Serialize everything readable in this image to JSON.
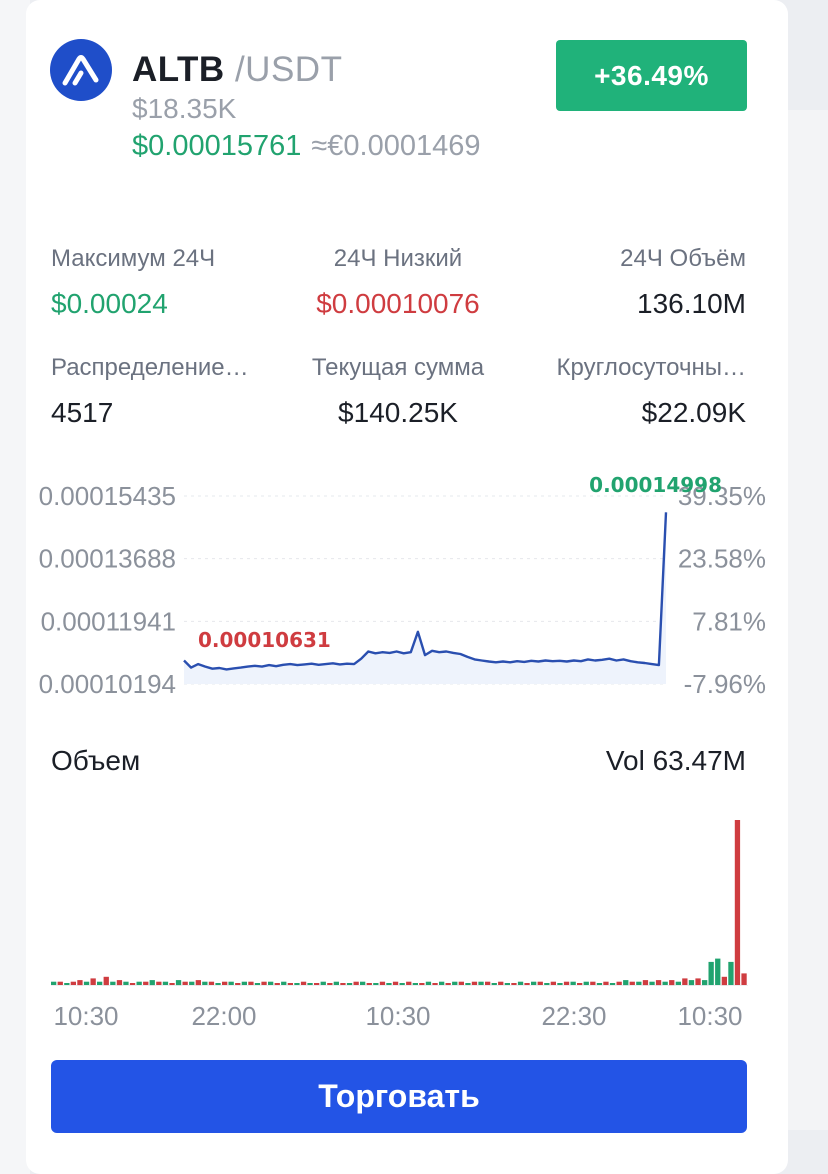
{
  "header": {
    "icon": "altb-logo-icon",
    "base": "ALTB",
    "quote": " /USDT",
    "market_cap": "$18.35K",
    "price": "$0.00015761",
    "fiat_price": "≈€0.0001469",
    "change": "+36.49%"
  },
  "stats": [
    {
      "label": "Максимум 24Ч",
      "value": "$0.00024"
    },
    {
      "label": "24Ч Низкий",
      "value": "$0.00010076"
    },
    {
      "label": "24Ч Объём",
      "value": "136.10M"
    },
    {
      "label": "Распределение…",
      "value": "4517"
    },
    {
      "label": "Текущая сумма",
      "value": "$140.25K"
    },
    {
      "label": "Круглосуточны…",
      "value": "$22.09K"
    }
  ],
  "colors": {
    "up": "#21a36f",
    "down": "#cf3c40",
    "line": "#2a4fb0",
    "button": "#2354e6"
  },
  "chart_data": [
    {
      "type": "line",
      "y_ticks": [
        "0.00015435",
        "0.00013688",
        "0.00011941",
        "0.00010194"
      ],
      "y_tick_values": [
        0.00015435,
        0.00013688,
        0.00011941,
        0.00010194
      ],
      "pct_ticks": [
        "39.35%",
        "23.58%",
        "7.81%",
        "-7.96%"
      ],
      "ylim": [
        0.00010194,
        0.00015435
      ],
      "high_label": "0.00014998",
      "low_label": "0.00010631",
      "values": [
        0.0001085,
        0.0001065,
        0.0001075,
        0.0001068,
        0.0001062,
        0.0001064,
        0.000106,
        0.0001063,
        0.0001065,
        0.0001068,
        0.000107,
        0.0001068,
        0.0001072,
        0.0001069,
        0.0001073,
        0.0001075,
        0.0001072,
        0.0001074,
        0.0001076,
        0.0001073,
        0.0001075,
        0.0001077,
        0.0001074,
        0.0001076,
        0.0001075,
        0.000109,
        0.000111,
        0.0001105,
        0.0001108,
        0.0001106,
        0.000111,
        0.0001105,
        0.0001108,
        0.0001165,
        0.00011,
        0.0001112,
        0.0001108,
        0.000111,
        0.0001106,
        0.0001103,
        0.0001095,
        0.0001088,
        0.0001085,
        0.0001082,
        0.000108,
        0.0001082,
        0.000108,
        0.0001083,
        0.0001081,
        0.0001084,
        0.0001082,
        0.0001085,
        0.0001083,
        0.0001084,
        0.0001082,
        0.0001085,
        0.0001083,
        0.0001088,
        0.0001085,
        0.0001087,
        0.000109,
        0.0001085,
        0.0001088,
        0.0001083,
        0.000108,
        0.0001078,
        0.0001075,
        0.0001072,
        0.0001498
      ]
    },
    {
      "type": "bar",
      "title": "Объем",
      "total_label": "Vol 63.47M",
      "x_ticks": [
        "10:30",
        "22:00",
        "10:30",
        "22:30",
        "10:30"
      ],
      "values": [
        2,
        2,
        1,
        2,
        3,
        2,
        4,
        2,
        5,
        2,
        3,
        2,
        1,
        2,
        2,
        3,
        2,
        2,
        1,
        3,
        2,
        2,
        3,
        2,
        2,
        1,
        2,
        2,
        1,
        2,
        2,
        1,
        2,
        2,
        1,
        2,
        1,
        1,
        2,
        1,
        1,
        2,
        1,
        2,
        1,
        1,
        2,
        2,
        1,
        1,
        2,
        1,
        2,
        1,
        2,
        1,
        1,
        2,
        1,
        2,
        1,
        2,
        2,
        1,
        2,
        2,
        2,
        1,
        2,
        1,
        1,
        2,
        1,
        2,
        2,
        1,
        2,
        1,
        2,
        2,
        1,
        2,
        2,
        1,
        2,
        1,
        2,
        3,
        2,
        2,
        3,
        2,
        3,
        2,
        3,
        2,
        4,
        3,
        4,
        3,
        14,
        16,
        5,
        14,
        100,
        7
      ],
      "up": [
        1,
        0,
        1,
        0,
        0,
        1,
        0,
        1,
        0,
        1,
        0,
        1,
        0,
        1,
        0,
        1,
        0,
        1,
        0,
        1,
        0,
        1,
        0,
        1,
        0,
        1,
        0,
        1,
        0,
        1,
        0,
        1,
        0,
        1,
        0,
        1,
        0,
        1,
        0,
        1,
        0,
        1,
        0,
        1,
        0,
        1,
        0,
        1,
        0,
        1,
        0,
        1,
        0,
        1,
        0,
        1,
        0,
        1,
        0,
        1,
        0,
        1,
        0,
        1,
        0,
        1,
        0,
        1,
        0,
        1,
        0,
        1,
        0,
        1,
        0,
        1,
        0,
        1,
        0,
        1,
        0,
        1,
        0,
        1,
        0,
        1,
        0,
        1,
        0,
        1,
        0,
        1,
        0,
        1,
        0,
        1,
        0,
        1,
        0,
        1,
        1,
        1,
        0,
        1,
        0,
        0
      ]
    }
  ],
  "trade_button": "Торговать"
}
